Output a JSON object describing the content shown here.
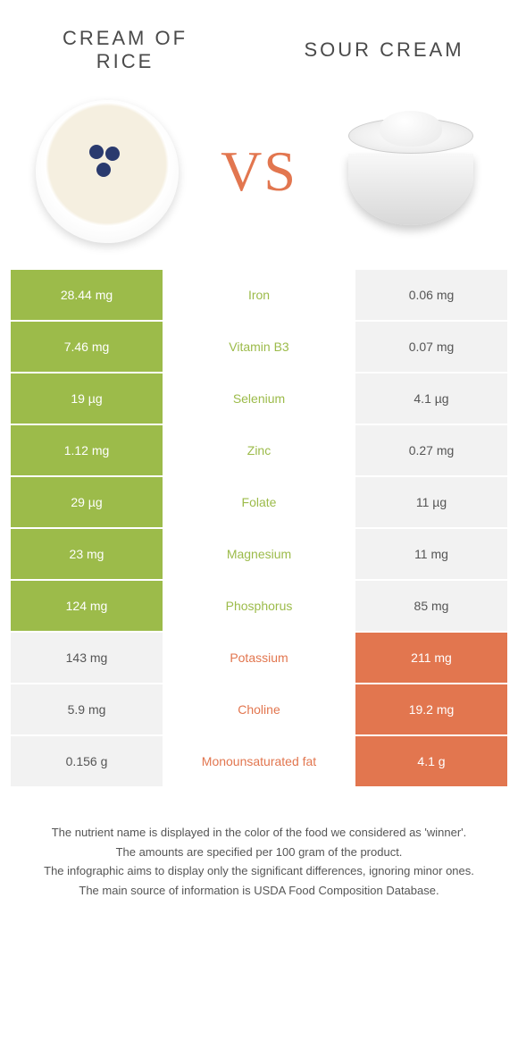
{
  "header": {
    "left_title": "CREAM OF RICE",
    "right_title": "SOUR CREAM",
    "vs_text": "VS"
  },
  "colors": {
    "left_fill": "#9cbb4a",
    "right_fill": "#e2764f",
    "neutral_fill": "#f2f2f2",
    "left_text": "#9cbb4a",
    "right_text": "#e2764f",
    "row_gap": "#ffffff"
  },
  "table": {
    "rows": [
      {
        "nutrient": "Iron",
        "left": "28.44 mg",
        "right": "0.06 mg",
        "winner": "left"
      },
      {
        "nutrient": "Vitamin B3",
        "left": "7.46 mg",
        "right": "0.07 mg",
        "winner": "left"
      },
      {
        "nutrient": "Selenium",
        "left": "19 µg",
        "right": "4.1 µg",
        "winner": "left"
      },
      {
        "nutrient": "Zinc",
        "left": "1.12 mg",
        "right": "0.27 mg",
        "winner": "left"
      },
      {
        "nutrient": "Folate",
        "left": "29 µg",
        "right": "11 µg",
        "winner": "left"
      },
      {
        "nutrient": "Magnesium",
        "left": "23 mg",
        "right": "11 mg",
        "winner": "left"
      },
      {
        "nutrient": "Phosphorus",
        "left": "124 mg",
        "right": "85 mg",
        "winner": "left"
      },
      {
        "nutrient": "Potassium",
        "left": "143 mg",
        "right": "211 mg",
        "winner": "right"
      },
      {
        "nutrient": "Choline",
        "left": "5.9 mg",
        "right": "19.2 mg",
        "winner": "right"
      },
      {
        "nutrient": "Monounsaturated fat",
        "left": "0.156 g",
        "right": "4.1 g",
        "winner": "right"
      }
    ]
  },
  "footer": {
    "line1": "The nutrient name is displayed in the color of the food we considered as 'winner'.",
    "line2": "The amounts are specified per 100 gram of the product.",
    "line3": "The infographic aims to display only the significant differences, ignoring minor ones.",
    "line4": "The main source of information is USDA Food Composition Database."
  }
}
